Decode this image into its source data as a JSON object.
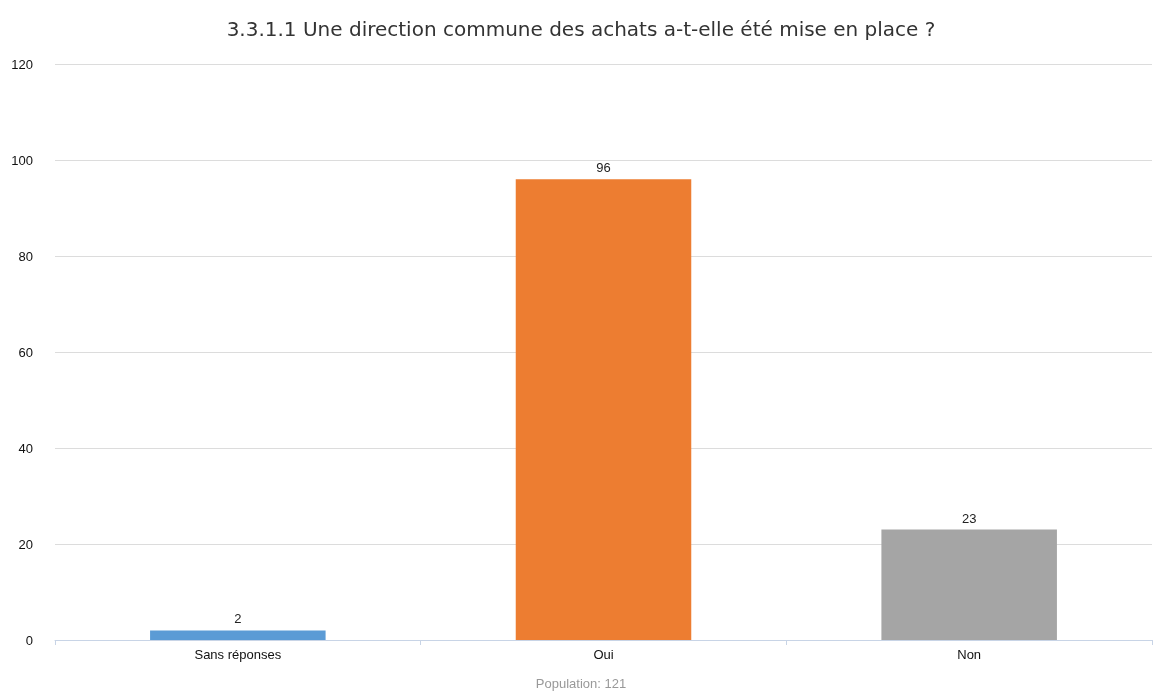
{
  "chart_data": {
    "type": "bar",
    "title": "3.3.1.1 Une direction commune des achats a-t-elle été mise en place ?",
    "categories": [
      "Sans réponses",
      "Oui",
      "Non"
    ],
    "values": [
      2,
      96,
      23
    ],
    "colors": [
      "#5b9bd5",
      "#ed7d31",
      "#a5a5a5"
    ],
    "ylim": [
      0,
      120
    ],
    "yticks": [
      0,
      20,
      40,
      60,
      80,
      100,
      120
    ],
    "grid": "y",
    "data_labels": true,
    "annotations": [
      "Population: 121"
    ]
  }
}
